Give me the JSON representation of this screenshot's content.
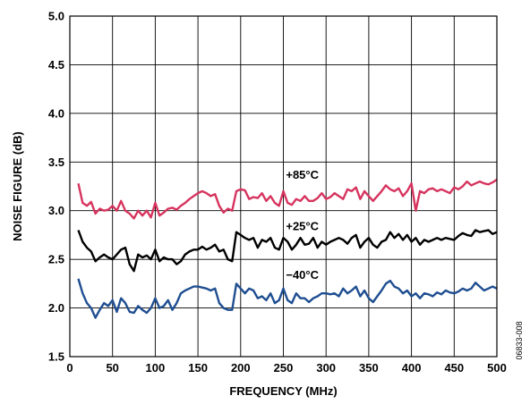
{
  "chart_data": {
    "type": "line",
    "xlabel": "FREQUENCY (MHz)",
    "ylabel": "NOISE FIGURE (dB)",
    "xlim": [
      0,
      500
    ],
    "ylim": [
      1.5,
      5.0
    ],
    "xticks": [
      0,
      50,
      100,
      150,
      200,
      250,
      300,
      350,
      400,
      450,
      500
    ],
    "yticks": [
      1.5,
      2.0,
      2.5,
      3.0,
      3.5,
      4.0,
      4.5,
      5.0
    ],
    "xtick_labels": [
      "0",
      "50",
      "100",
      "150",
      "200",
      "250",
      "300",
      "350",
      "400",
      "450",
      "500"
    ],
    "ytick_labels": [
      "1.5",
      "2.0",
      "2.5",
      "3.0",
      "3.5",
      "4.0",
      "4.5",
      "5.0"
    ],
    "grid": true,
    "figure_code": "06833-008",
    "series": [
      {
        "name": "+85°C",
        "color": "#d6345e",
        "x": [
          10,
          15,
          20,
          25,
          30,
          35,
          40,
          45,
          50,
          55,
          60,
          65,
          70,
          75,
          80,
          85,
          90,
          95,
          100,
          105,
          110,
          115,
          120,
          125,
          130,
          135,
          140,
          145,
          150,
          155,
          160,
          165,
          170,
          175,
          180,
          185,
          190,
          195,
          200,
          205,
          210,
          215,
          220,
          225,
          230,
          235,
          240,
          245,
          250,
          255,
          260,
          265,
          270,
          275,
          280,
          285,
          290,
          295,
          300,
          305,
          310,
          315,
          320,
          325,
          330,
          335,
          340,
          345,
          350,
          355,
          360,
          365,
          370,
          375,
          380,
          385,
          390,
          395,
          400,
          405,
          410,
          415,
          420,
          425,
          430,
          435,
          440,
          445,
          450,
          455,
          460,
          465,
          470,
          475,
          480,
          485,
          490,
          495,
          500
        ],
        "y": [
          3.28,
          3.08,
          3.05,
          3.09,
          2.97,
          3.02,
          3.0,
          3.01,
          3.05,
          3.0,
          3.1,
          3.0,
          2.97,
          2.92,
          3.0,
          2.95,
          3.0,
          2.93,
          3.08,
          2.95,
          2.98,
          3.02,
          3.03,
          3.01,
          3.05,
          3.08,
          3.12,
          3.15,
          3.18,
          3.2,
          3.18,
          3.15,
          3.17,
          3.05,
          2.98,
          3.02,
          3.0,
          3.2,
          3.22,
          3.21,
          3.12,
          3.14,
          3.13,
          3.18,
          3.1,
          3.15,
          3.08,
          3.05,
          3.2,
          3.08,
          3.06,
          3.12,
          3.1,
          3.15,
          3.1,
          3.1,
          3.13,
          3.18,
          3.12,
          3.14,
          3.18,
          3.15,
          3.12,
          3.22,
          3.2,
          3.24,
          3.12,
          3.2,
          3.15,
          3.1,
          3.15,
          3.2,
          3.26,
          3.22,
          3.2,
          3.23,
          3.15,
          3.2,
          3.28,
          3.0,
          3.2,
          3.18,
          3.22,
          3.23,
          3.2,
          3.22,
          3.2,
          3.18,
          3.24,
          3.22,
          3.25,
          3.3,
          3.26,
          3.28,
          3.3,
          3.28,
          3.27,
          3.29,
          3.32
        ]
      },
      {
        "name": "+25°C",
        "color": "#000000",
        "x": [
          10,
          15,
          20,
          25,
          30,
          35,
          40,
          45,
          50,
          55,
          60,
          65,
          70,
          75,
          80,
          85,
          90,
          95,
          100,
          105,
          110,
          115,
          120,
          125,
          130,
          135,
          140,
          145,
          150,
          155,
          160,
          165,
          170,
          175,
          180,
          185,
          190,
          195,
          200,
          205,
          210,
          215,
          220,
          225,
          230,
          235,
          240,
          245,
          250,
          255,
          260,
          265,
          270,
          275,
          280,
          285,
          290,
          295,
          300,
          305,
          310,
          315,
          320,
          325,
          330,
          335,
          340,
          345,
          350,
          355,
          360,
          365,
          370,
          375,
          380,
          385,
          390,
          395,
          400,
          405,
          410,
          415,
          420,
          425,
          430,
          435,
          440,
          445,
          450,
          455,
          460,
          465,
          470,
          475,
          480,
          485,
          490,
          495,
          500
        ],
        "y": [
          2.8,
          2.68,
          2.62,
          2.58,
          2.48,
          2.52,
          2.55,
          2.52,
          2.5,
          2.55,
          2.6,
          2.62,
          2.45,
          2.38,
          2.55,
          2.52,
          2.54,
          2.5,
          2.6,
          2.48,
          2.52,
          2.5,
          2.5,
          2.45,
          2.48,
          2.55,
          2.58,
          2.6,
          2.6,
          2.63,
          2.6,
          2.62,
          2.65,
          2.58,
          2.6,
          2.5,
          2.48,
          2.78,
          2.75,
          2.72,
          2.7,
          2.72,
          2.62,
          2.7,
          2.68,
          2.72,
          2.62,
          2.6,
          2.72,
          2.68,
          2.6,
          2.65,
          2.72,
          2.65,
          2.66,
          2.72,
          2.62,
          2.68,
          2.65,
          2.68,
          2.7,
          2.72,
          2.7,
          2.66,
          2.72,
          2.75,
          2.62,
          2.68,
          2.72,
          2.65,
          2.62,
          2.68,
          2.7,
          2.78,
          2.72,
          2.76,
          2.7,
          2.75,
          2.68,
          2.72,
          2.65,
          2.7,
          2.68,
          2.7,
          2.72,
          2.7,
          2.72,
          2.71,
          2.7,
          2.74,
          2.77,
          2.75,
          2.74,
          2.8,
          2.78,
          2.79,
          2.8,
          2.76,
          2.78
        ]
      },
      {
        "name": "−40°C",
        "color": "#1f4e91",
        "x": [
          10,
          15,
          20,
          25,
          30,
          35,
          40,
          45,
          50,
          55,
          60,
          65,
          70,
          75,
          80,
          85,
          90,
          95,
          100,
          105,
          110,
          115,
          120,
          125,
          130,
          135,
          140,
          145,
          150,
          155,
          160,
          165,
          170,
          175,
          180,
          185,
          190,
          195,
          200,
          205,
          210,
          215,
          220,
          225,
          230,
          235,
          240,
          245,
          250,
          255,
          260,
          265,
          270,
          275,
          280,
          285,
          290,
          295,
          300,
          305,
          310,
          315,
          320,
          325,
          330,
          335,
          340,
          345,
          350,
          355,
          360,
          365,
          370,
          375,
          380,
          385,
          390,
          395,
          400,
          405,
          410,
          415,
          420,
          425,
          430,
          435,
          440,
          445,
          450,
          455,
          460,
          465,
          470,
          475,
          480,
          485,
          490,
          495,
          500
        ],
        "y": [
          2.3,
          2.15,
          2.05,
          2.0,
          1.9,
          1.98,
          2.05,
          2.02,
          2.08,
          1.96,
          2.1,
          2.05,
          1.96,
          1.95,
          2.02,
          1.98,
          1.95,
          2.0,
          2.1,
          2.0,
          2.02,
          2.08,
          1.98,
          2.05,
          2.15,
          2.18,
          2.2,
          2.22,
          2.22,
          2.21,
          2.2,
          2.18,
          2.2,
          2.05,
          2.0,
          1.98,
          1.98,
          2.25,
          2.2,
          2.15,
          2.2,
          2.18,
          2.1,
          2.12,
          2.08,
          2.15,
          2.05,
          2.08,
          2.2,
          2.08,
          2.05,
          2.15,
          2.1,
          2.1,
          2.06,
          2.1,
          2.12,
          2.15,
          2.15,
          2.14,
          2.15,
          2.12,
          2.2,
          2.15,
          2.18,
          2.22,
          2.12,
          2.18,
          2.1,
          2.06,
          2.12,
          2.18,
          2.25,
          2.28,
          2.22,
          2.2,
          2.15,
          2.18,
          2.12,
          2.15,
          2.1,
          2.15,
          2.14,
          2.12,
          2.16,
          2.14,
          2.18,
          2.16,
          2.15,
          2.17,
          2.2,
          2.18,
          2.2,
          2.26,
          2.22,
          2.18,
          2.2,
          2.22,
          2.2
        ]
      }
    ],
    "series_labels": [
      {
        "text": "+85°C",
        "x": 253,
        "y": 3.33
      },
      {
        "text": "+25°C",
        "x": 253,
        "y": 2.8
      },
      {
        "text": "−40°C",
        "x": 253,
        "y": 2.3
      }
    ]
  }
}
